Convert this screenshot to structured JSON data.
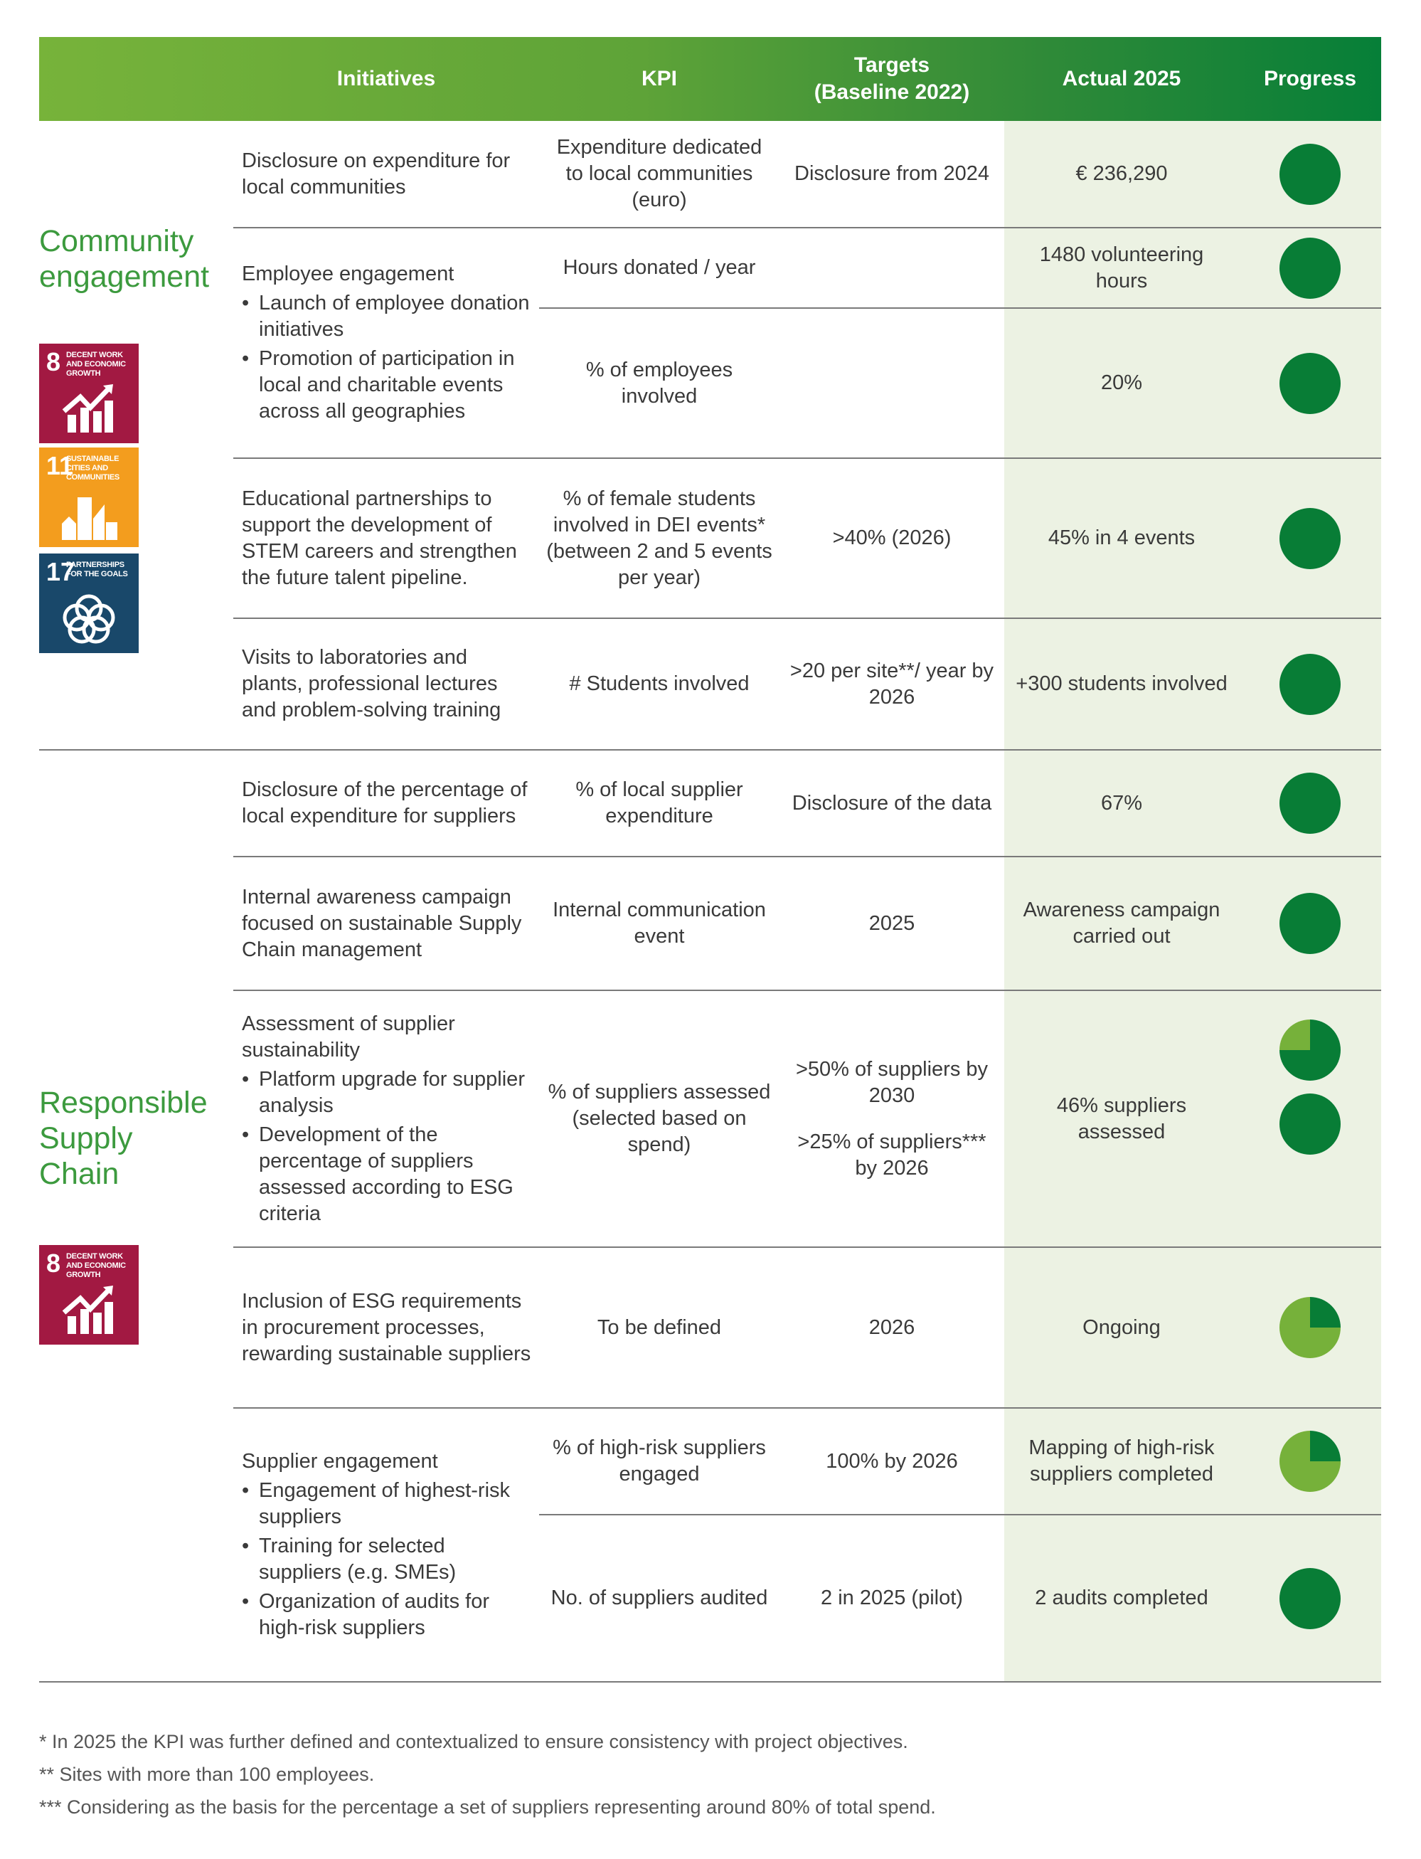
{
  "header": {
    "initiatives": "Initiatives",
    "kpi": "KPI",
    "targets_line1": "Targets",
    "targets_line2": "(Baseline 2022)",
    "actual": "Actual 2025",
    "progress": "Progress"
  },
  "colors": {
    "pie_dark": "#087d36",
    "pie_light": "#76b13a",
    "section_title": "#3c9a3e",
    "actual_bg": "#ecf2e3"
  },
  "sections": [
    {
      "title_line1": "Community",
      "title_line2": "engagement",
      "sdgs": [
        {
          "number": "8",
          "label": "DECENT WORK AND ECONOMIC GROWTH",
          "color": "#a21942",
          "icon": "growth-chart-icon"
        },
        {
          "number": "11",
          "label": "SUSTAINABLE CITIES AND COMMUNITIES",
          "color": "#f39d1e",
          "icon": "city-buildings-icon"
        },
        {
          "number": "17",
          "label": "PARTNERSHIPS FOR THE GOALS",
          "color": "#19486a",
          "icon": "interlocking-rings-icon"
        }
      ]
    },
    {
      "title_line1": "Responsible",
      "title_line2": "Supply",
      "title_line3": "Chain",
      "sdgs": [
        {
          "number": "8",
          "label": "DECENT WORK AND ECONOMIC GROWTH",
          "color": "#a21942",
          "icon": "growth-chart-icon"
        }
      ]
    }
  ],
  "rows": [
    {
      "initiative": "Disclosure on expenditure for local communities",
      "kpi": "Expenditure dedicated to local communities (euro)",
      "target": "Disclosure from 2024",
      "actual": "€ 236,290",
      "progress": 1.0
    },
    {
      "initiative": "Employee engagement",
      "bullets": [
        "Launch of employee donation initiatives",
        "Promotion of participation in local and charitable events across all geographies"
      ],
      "kpi": "Hours donated / year",
      "target": "",
      "actual": "1480 volunteering hours",
      "progress": 1.0
    },
    {
      "kpi": "% of employees involved",
      "target": "",
      "actual": "20%",
      "progress": 1.0
    },
    {
      "initiative": "Educational partnerships to support the development of STEM careers and strengthen the future talent pipeline.",
      "kpi": "% of female students involved in DEI events* (between 2 and 5 events per year)",
      "target": ">40% (2026)",
      "actual": "45% in 4 events",
      "progress": 1.0
    },
    {
      "initiative": "Visits to laboratories and plants, professional lectures and problem-solving training",
      "kpi": "# Students involved",
      "target": ">20 per site**/ year by 2026",
      "actual": "+300 students involved",
      "progress": 1.0
    },
    {
      "initiative": "Disclosure of the percentage of local expenditure for suppliers",
      "kpi": "% of local supplier expenditure",
      "target": "Disclosure of the data",
      "actual": "67%",
      "progress": 1.0
    },
    {
      "initiative": "Internal awareness campaign focused on sustainable Supply Chain management",
      "kpi": "Internal communication event",
      "target": "2025",
      "actual": "Awareness campaign carried out",
      "progress": 1.0
    },
    {
      "initiative": "Assessment of supplier sustainability",
      "bullets": [
        "Platform upgrade for supplier analysis",
        "Development of the percentage of suppliers assessed according to ESG criteria"
      ],
      "kpi": "% of suppliers assessed (selected based on spend)",
      "target": ">50% of suppliers by 2030",
      "target2": ">25% of suppliers*** by 2026",
      "actual": "46% suppliers assessed",
      "progress": 0.75,
      "progress2": 1.0
    },
    {
      "initiative": "Inclusion of ESG requirements in procurement processes, rewarding sustainable suppliers",
      "kpi": "To be defined",
      "target": "2026",
      "actual": "Ongoing",
      "progress": 0.25
    },
    {
      "initiative": "Supplier engagement",
      "bullets": [
        "Engagement of highest-risk suppliers",
        "Training for selected suppliers (e.g. SMEs)",
        "Organization of audits for high-risk suppliers"
      ],
      "kpi": "% of high-risk suppliers engaged",
      "target": "100% by 2026",
      "actual": "Mapping of high-risk suppliers completed",
      "progress": 0.25
    },
    {
      "kpi": "No. of suppliers audited",
      "target": "2 in 2025 (pilot)",
      "actual": "2 audits completed",
      "progress": 1.0
    }
  ],
  "footnotes": [
    "* In 2025 the KPI was further defined and contextualized to ensure consistency with project objectives.",
    "** Sites with more than 100 employees.",
    "*** Considering as the basis for the percentage a set of suppliers representing around 80% of total spend."
  ]
}
